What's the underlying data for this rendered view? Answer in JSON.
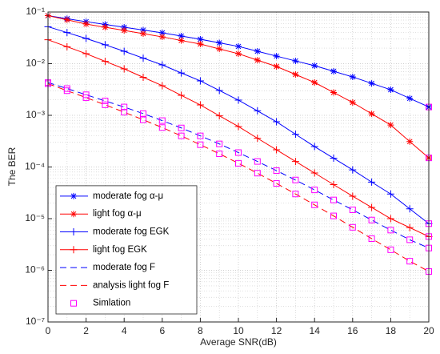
{
  "chart_data": {
    "type": "line",
    "xlabel": "Average SNR(dB)",
    "ylabel": "The BER",
    "x": [
      0,
      1,
      2,
      3,
      4,
      5,
      6,
      7,
      8,
      9,
      10,
      11,
      12,
      13,
      14,
      15,
      16,
      17,
      18,
      19,
      20
    ],
    "xlim": [
      0,
      20
    ],
    "xticks": [
      0,
      2,
      4,
      6,
      8,
      10,
      12,
      14,
      16,
      18,
      20
    ],
    "ylim": [
      1e-07,
      0.1
    ],
    "log_y": true,
    "grid": true,
    "minor_grid": true,
    "legend": "lower left",
    "yticks": [
      {
        "value": 1e-07,
        "label": "10⁻⁷"
      },
      {
        "value": 1e-06,
        "label": "10⁻⁶"
      },
      {
        "value": 1e-05,
        "label": "10⁻⁵"
      },
      {
        "value": 0.0001,
        "label": "10⁻⁴"
      },
      {
        "value": 0.001,
        "label": "10⁻³"
      },
      {
        "value": 0.01,
        "label": "10⁻²"
      },
      {
        "value": 0.1,
        "label": "10⁻¹"
      }
    ],
    "series": [
      {
        "name": "moderate fog α-μ",
        "color": "#0000ff",
        "marker": "asterisk",
        "dash": false,
        "values": [
          0.085,
          0.0743,
          0.065,
          0.0574,
          0.0507,
          0.0447,
          0.0395,
          0.0343,
          0.0297,
          0.0253,
          0.0216,
          0.0174,
          0.014,
          0.0113,
          0.00914,
          0.00712,
          0.00554,
          0.00416,
          0.00313,
          0.00213,
          0.00145
        ]
      },
      {
        "name": "light fog α-μ",
        "color": "#ff0000",
        "marker": "asterisk",
        "dash": false,
        "values": [
          0.085,
          0.0705,
          0.0585,
          0.0507,
          0.044,
          0.0381,
          0.033,
          0.0281,
          0.024,
          0.0193,
          0.0156,
          0.0117,
          0.00883,
          0.00618,
          0.00432,
          0.00277,
          0.00177,
          0.00107,
          0.00065,
          0.00031,
          0.00015
        ]
      },
      {
        "name": "moderate fog EGK",
        "color": "#0000ff",
        "marker": "plus",
        "dash": false,
        "values": [
          0.052,
          0.04,
          0.0308,
          0.0232,
          0.0174,
          0.0128,
          0.00948,
          0.0066,
          0.00465,
          0.00303,
          0.00197,
          0.00122,
          0.00075,
          0.00043,
          0.000248,
          0.000148,
          8.8e-05,
          5.1e-05,
          3e-05,
          1.55e-05,
          8e-06
        ]
      },
      {
        "name": "light fog EGK",
        "color": "#ff0000",
        "marker": "plus",
        "dash": false,
        "values": [
          0.029,
          0.0213,
          0.0156,
          0.0111,
          0.00793,
          0.00545,
          0.00375,
          0.00244,
          0.00159,
          0.00098,
          0.000607,
          0.00036,
          0.000215,
          0.000128,
          7.65e-05,
          4.56e-05,
          2.72e-05,
          1.65e-05,
          1e-05,
          6.7e-06,
          4.5e-06
        ]
      },
      {
        "name": "moderate fog F",
        "color": "#0000ff",
        "marker": "none",
        "dash": true,
        "values": [
          0.0043,
          0.0033,
          0.0025,
          0.0019,
          0.00145,
          0.00108,
          0.00079,
          0.00057,
          0.0004,
          0.00028,
          0.00019,
          0.000128,
          8.5e-05,
          5.6e-05,
          3.6e-05,
          2.3e-05,
          1.48e-05,
          9.4e-06,
          6e-06,
          3.9e-06,
          2.7e-06
        ]
      },
      {
        "name": "analysis light fog F",
        "color": "#ff0000",
        "marker": "none",
        "dash": true,
        "values": [
          0.0041,
          0.003,
          0.0022,
          0.0016,
          0.00115,
          0.00082,
          0.00058,
          0.0004,
          0.00027,
          0.00018,
          0.000118,
          7.6e-05,
          4.8e-05,
          3e-05,
          1.85e-05,
          1.13e-05,
          6.8e-06,
          4.1e-06,
          2.5e-06,
          1.5e-06,
          9.5e-07
        ]
      }
    ],
    "simulation": {
      "name": "Simlation",
      "color": "#ff00ff",
      "marker": "square",
      "x": [
        0,
        1,
        2,
        3,
        4,
        5,
        6,
        7,
        8,
        9,
        10,
        11,
        12,
        13,
        14,
        15,
        16,
        17,
        18,
        19,
        20,
        0,
        1,
        2,
        3,
        4,
        5,
        6,
        7,
        8,
        9,
        10,
        11,
        12,
        13,
        14,
        15,
        16,
        17,
        18,
        19,
        20,
        20,
        20,
        20,
        20
      ],
      "values": [
        0.0043,
        0.0033,
        0.0025,
        0.0019,
        0.00145,
        0.00108,
        0.00079,
        0.00057,
        0.0004,
        0.00028,
        0.00019,
        0.000128,
        8.5e-05,
        5.6e-05,
        3.6e-05,
        2.3e-05,
        1.48e-05,
        9.4e-06,
        6e-06,
        3.9e-06,
        2.7e-06,
        0.0041,
        0.003,
        0.0022,
        0.0016,
        0.00115,
        0.00082,
        0.00058,
        0.0004,
        0.00027,
        0.00018,
        0.000118,
        7.6e-05,
        4.8e-05,
        3e-05,
        1.85e-05,
        1.13e-05,
        6.8e-06,
        4.1e-06,
        2.5e-06,
        1.5e-06,
        9.5e-07,
        0.00145,
        0.00015,
        8e-06,
        4.5e-06
      ]
    }
  }
}
